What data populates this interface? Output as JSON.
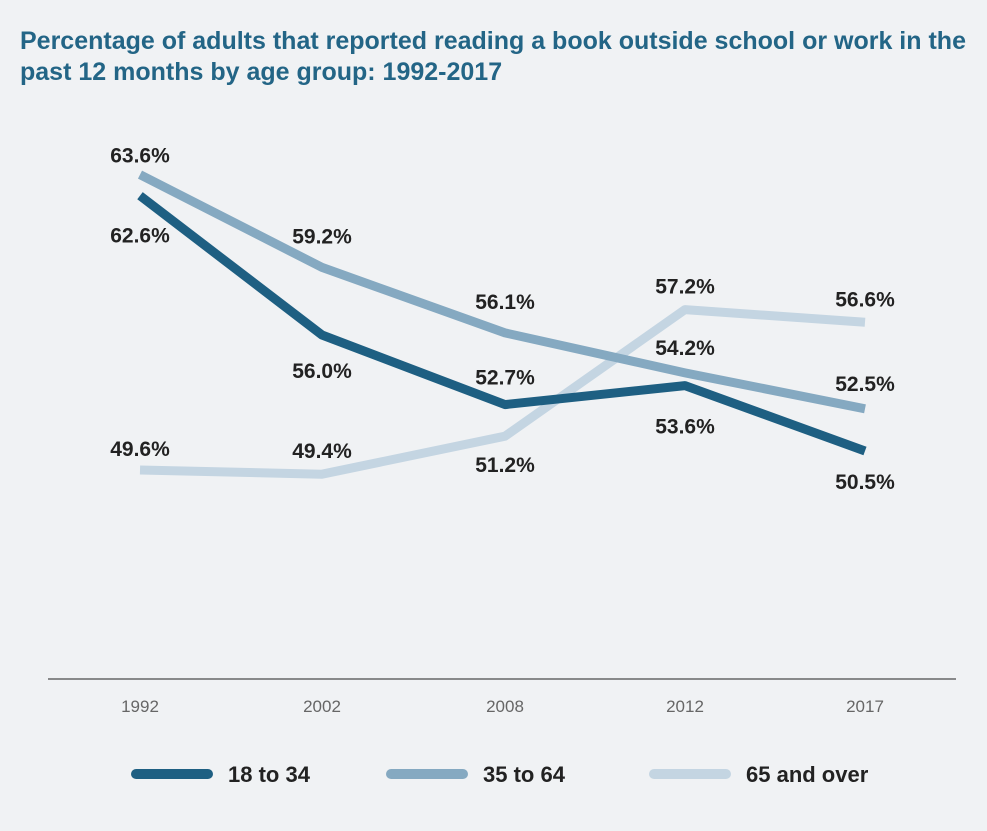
{
  "chart_data": {
    "type": "line",
    "title": "Percentage of adults that reported reading a book outside school or work in the past 12 months by age group: 1992-2017",
    "categories": [
      "1992",
      "2002",
      "2008",
      "2012",
      "2017"
    ],
    "series": [
      {
        "name": "18 to 34",
        "values": [
          62.6,
          56.0,
          52.7,
          53.6,
          50.5
        ],
        "labels": [
          "62.6%",
          "56.0%",
          "52.7%",
          "53.6%",
          "50.5%"
        ],
        "color": "#1e5f82"
      },
      {
        "name": "35 to 64",
        "values": [
          63.6,
          59.2,
          56.1,
          54.2,
          52.5
        ],
        "labels": [
          "63.6%",
          "59.2%",
          "56.1%",
          "54.2%",
          "52.5%"
        ],
        "color": "#85a9c1"
      },
      {
        "name": "65 and over",
        "values": [
          49.6,
          49.4,
          51.2,
          57.2,
          56.6
        ],
        "labels": [
          "49.6%",
          "49.4%",
          "51.2%",
          "57.2%",
          "56.6%"
        ],
        "color": "#c4d5e2"
      }
    ],
    "xlabel": "",
    "ylabel": "",
    "grid": false,
    "legend_position": "bottom"
  }
}
